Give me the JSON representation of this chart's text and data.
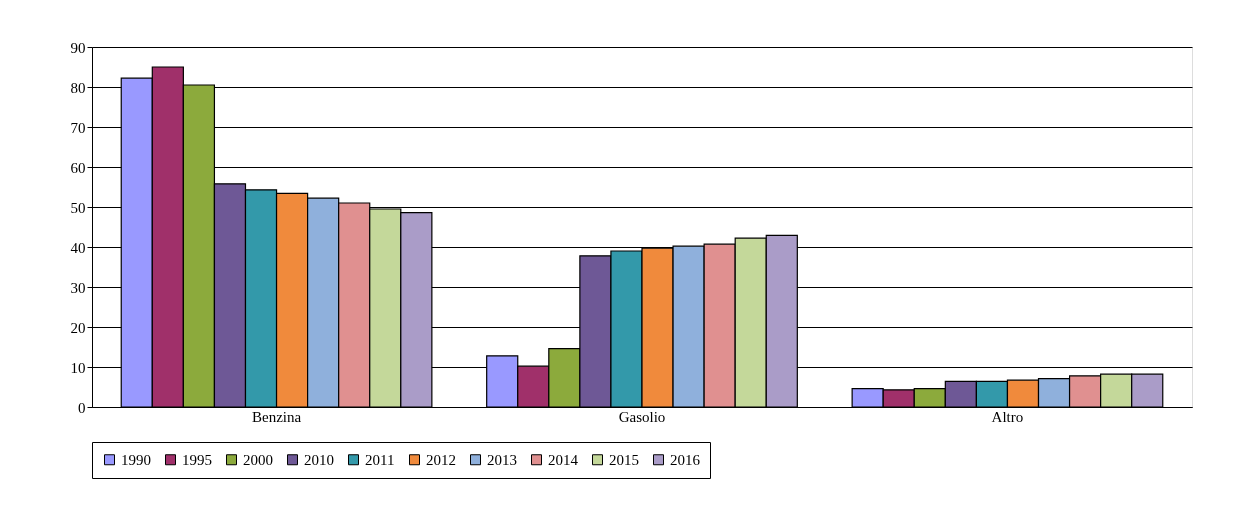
{
  "chart_data": {
    "type": "bar",
    "categories": [
      "Benzina",
      "Gasolio",
      "Altro"
    ],
    "series": [
      {
        "name": "1990",
        "color": "#9999ff",
        "values": [
          82.2,
          12.8,
          4.6
        ]
      },
      {
        "name": "1995",
        "color": "#a0306a",
        "values": [
          85,
          10.2,
          4.3
        ]
      },
      {
        "name": "2000",
        "color": "#8caa3c",
        "values": [
          80.5,
          14.6,
          4.6
        ]
      },
      {
        "name": "2010",
        "color": "#6e5896",
        "values": [
          55.8,
          37.8,
          6.4
        ]
      },
      {
        "name": "2011",
        "color": "#3399aa",
        "values": [
          54.3,
          39,
          6.4
        ]
      },
      {
        "name": "2012",
        "color": "#f08a3c",
        "values": [
          53.4,
          39.7,
          6.7
        ]
      },
      {
        "name": "2013",
        "color": "#8fb0dc",
        "values": [
          52.2,
          40.2,
          7.1
        ]
      },
      {
        "name": "2014",
        "color": "#e09090",
        "values": [
          51,
          40.7,
          7.8
        ]
      },
      {
        "name": "2015",
        "color": "#c4d89a",
        "values": [
          49.5,
          42.2,
          8.2
        ]
      },
      {
        "name": "2016",
        "color": "#aa9cc8",
        "values": [
          48.6,
          42.9,
          8.2
        ]
      }
    ],
    "ylim": [
      0,
      90
    ],
    "yticks": [
      0,
      10,
      20,
      30,
      40,
      50,
      60,
      70,
      80,
      90
    ],
    "grid": "y",
    "legend": "bottom"
  }
}
